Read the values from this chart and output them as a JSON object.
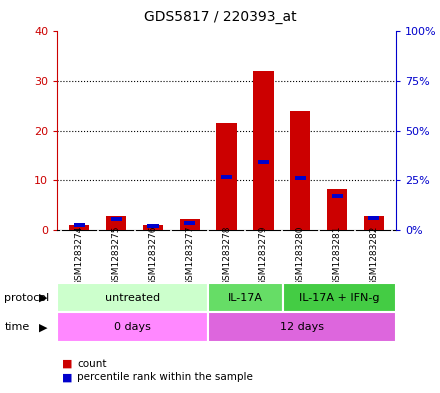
{
  "title": "GDS5817 / 220393_at",
  "samples": [
    "GSM1283274",
    "GSM1283275",
    "GSM1283276",
    "GSM1283277",
    "GSM1283278",
    "GSM1283279",
    "GSM1283280",
    "GSM1283281",
    "GSM1283282"
  ],
  "count_values": [
    1.0,
    2.8,
    1.0,
    2.2,
    21.5,
    32.0,
    24.0,
    8.2,
    2.8
  ],
  "percentile_values": [
    2.5,
    5.5,
    2.0,
    3.5,
    26.5,
    34.0,
    26.0,
    17.0,
    6.0
  ],
  "count_color": "#cc0000",
  "percentile_color": "#0000cc",
  "ylim_left": [
    0,
    40
  ],
  "ylim_right": [
    0,
    100
  ],
  "yticks_left": [
    0,
    10,
    20,
    30,
    40
  ],
  "yticks_right": [
    0,
    25,
    50,
    75,
    100
  ],
  "ytick_labels_left": [
    "0",
    "10",
    "20",
    "30",
    "40"
  ],
  "ytick_labels_right": [
    "0%",
    "25%",
    "50%",
    "75%",
    "100%"
  ],
  "protocol_groups": [
    {
      "label": "untreated",
      "start": 0,
      "end": 4,
      "color": "#ccffcc"
    },
    {
      "label": "IL-17A",
      "start": 4,
      "end": 6,
      "color": "#66dd66"
    },
    {
      "label": "IL-17A + IFN-g",
      "start": 6,
      "end": 9,
      "color": "#44cc44"
    }
  ],
  "time_groups": [
    {
      "label": "0 days",
      "start": 0,
      "end": 4,
      "color": "#ff88ff"
    },
    {
      "label": "12 days",
      "start": 4,
      "end": 9,
      "color": "#dd66dd"
    }
  ],
  "background_color": "#ffffff",
  "plot_bg_color": "#ffffff",
  "sample_bg_color": "#cccccc",
  "legend_count_label": "count",
  "legend_percentile_label": "percentile rank within the sample"
}
